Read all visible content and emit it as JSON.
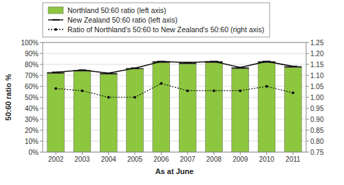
{
  "chart_data": {
    "type": "bar",
    "x": [
      2002,
      2003,
      2004,
      2005,
      2006,
      2007,
      2008,
      2009,
      2010,
      2011
    ],
    "xlim": [
      2001.5,
      2011.5
    ],
    "xticks": [
      2002,
      2003,
      2004,
      2005,
      2006,
      2007,
      2008,
      2009,
      2010,
      2011
    ],
    "xlabel": "As at June",
    "ylabel": "50:60 ratio %",
    "ylim": [
      0,
      1.0
    ],
    "yticks": [
      {
        "value": 0.0,
        "label": "0%"
      },
      {
        "value": 0.1,
        "label": "10%"
      },
      {
        "value": 0.2,
        "label": "20%"
      },
      {
        "value": 0.3,
        "label": "30%"
      },
      {
        "value": 0.4,
        "label": "40%"
      },
      {
        "value": 0.5,
        "label": "50%"
      },
      {
        "value": 0.6,
        "label": "60%"
      },
      {
        "value": 0.7,
        "label": "70%"
      },
      {
        "value": 0.8,
        "label": "80%"
      },
      {
        "value": 0.9,
        "label": "90%"
      },
      {
        "value": 1.0,
        "label": "100%"
      }
    ],
    "y2lim": [
      0.75,
      1.25
    ],
    "y2ticks": [
      0.75,
      {
        "value": 0.8,
        "label": "0.80"
      },
      0.85,
      {
        "value": 0.9,
        "label": "0.90"
      },
      0.95,
      {
        "value": 1.0,
        "label": "1.00"
      },
      1.05,
      {
        "value": 1.1,
        "label": "1.10"
      },
      1.15,
      {
        "value": 1.2,
        "label": "1.20"
      },
      1.25
    ],
    "grid": true,
    "stacked": true,
    "legend": "top",
    "series": [
      {
        "name": "Northland 50:60 ratio (left axis)",
        "type": "bar",
        "color": "#8DC63F",
        "values": [
          0.718,
          0.738,
          0.71,
          0.758,
          0.815,
          0.805,
          0.815,
          0.762,
          0.815,
          0.772
        ]
      },
      {
        "type": "bar",
        "color": "#1a1a00",
        "values": [
          0.01,
          0.01,
          0.01,
          0.008,
          0.012,
          0.012,
          0.012,
          0.01,
          0.012,
          0.01
        ]
      },
      {
        "name": "New Zealand 50:60 ratio (left axis)",
        "type": "line",
        "color": "#111111",
        "line_style": "solid",
        "marker": "dash",
        "values": [
          0.728,
          0.748,
          0.72,
          0.766,
          0.827,
          0.817,
          0.827,
          0.772,
          0.827,
          0.782
        ]
      },
      {
        "name": "Ratio of Northland's 50:60 to New Zealand's 50:60 (right axis)",
        "type": "line",
        "axis": "y2",
        "color": "#111111",
        "line_style": "dotted",
        "marker": "circle",
        "values": [
          1.04,
          1.03,
          1.0,
          1.0,
          1.063,
          1.03,
          1.03,
          1.03,
          1.05,
          1.02
        ]
      }
    ]
  }
}
